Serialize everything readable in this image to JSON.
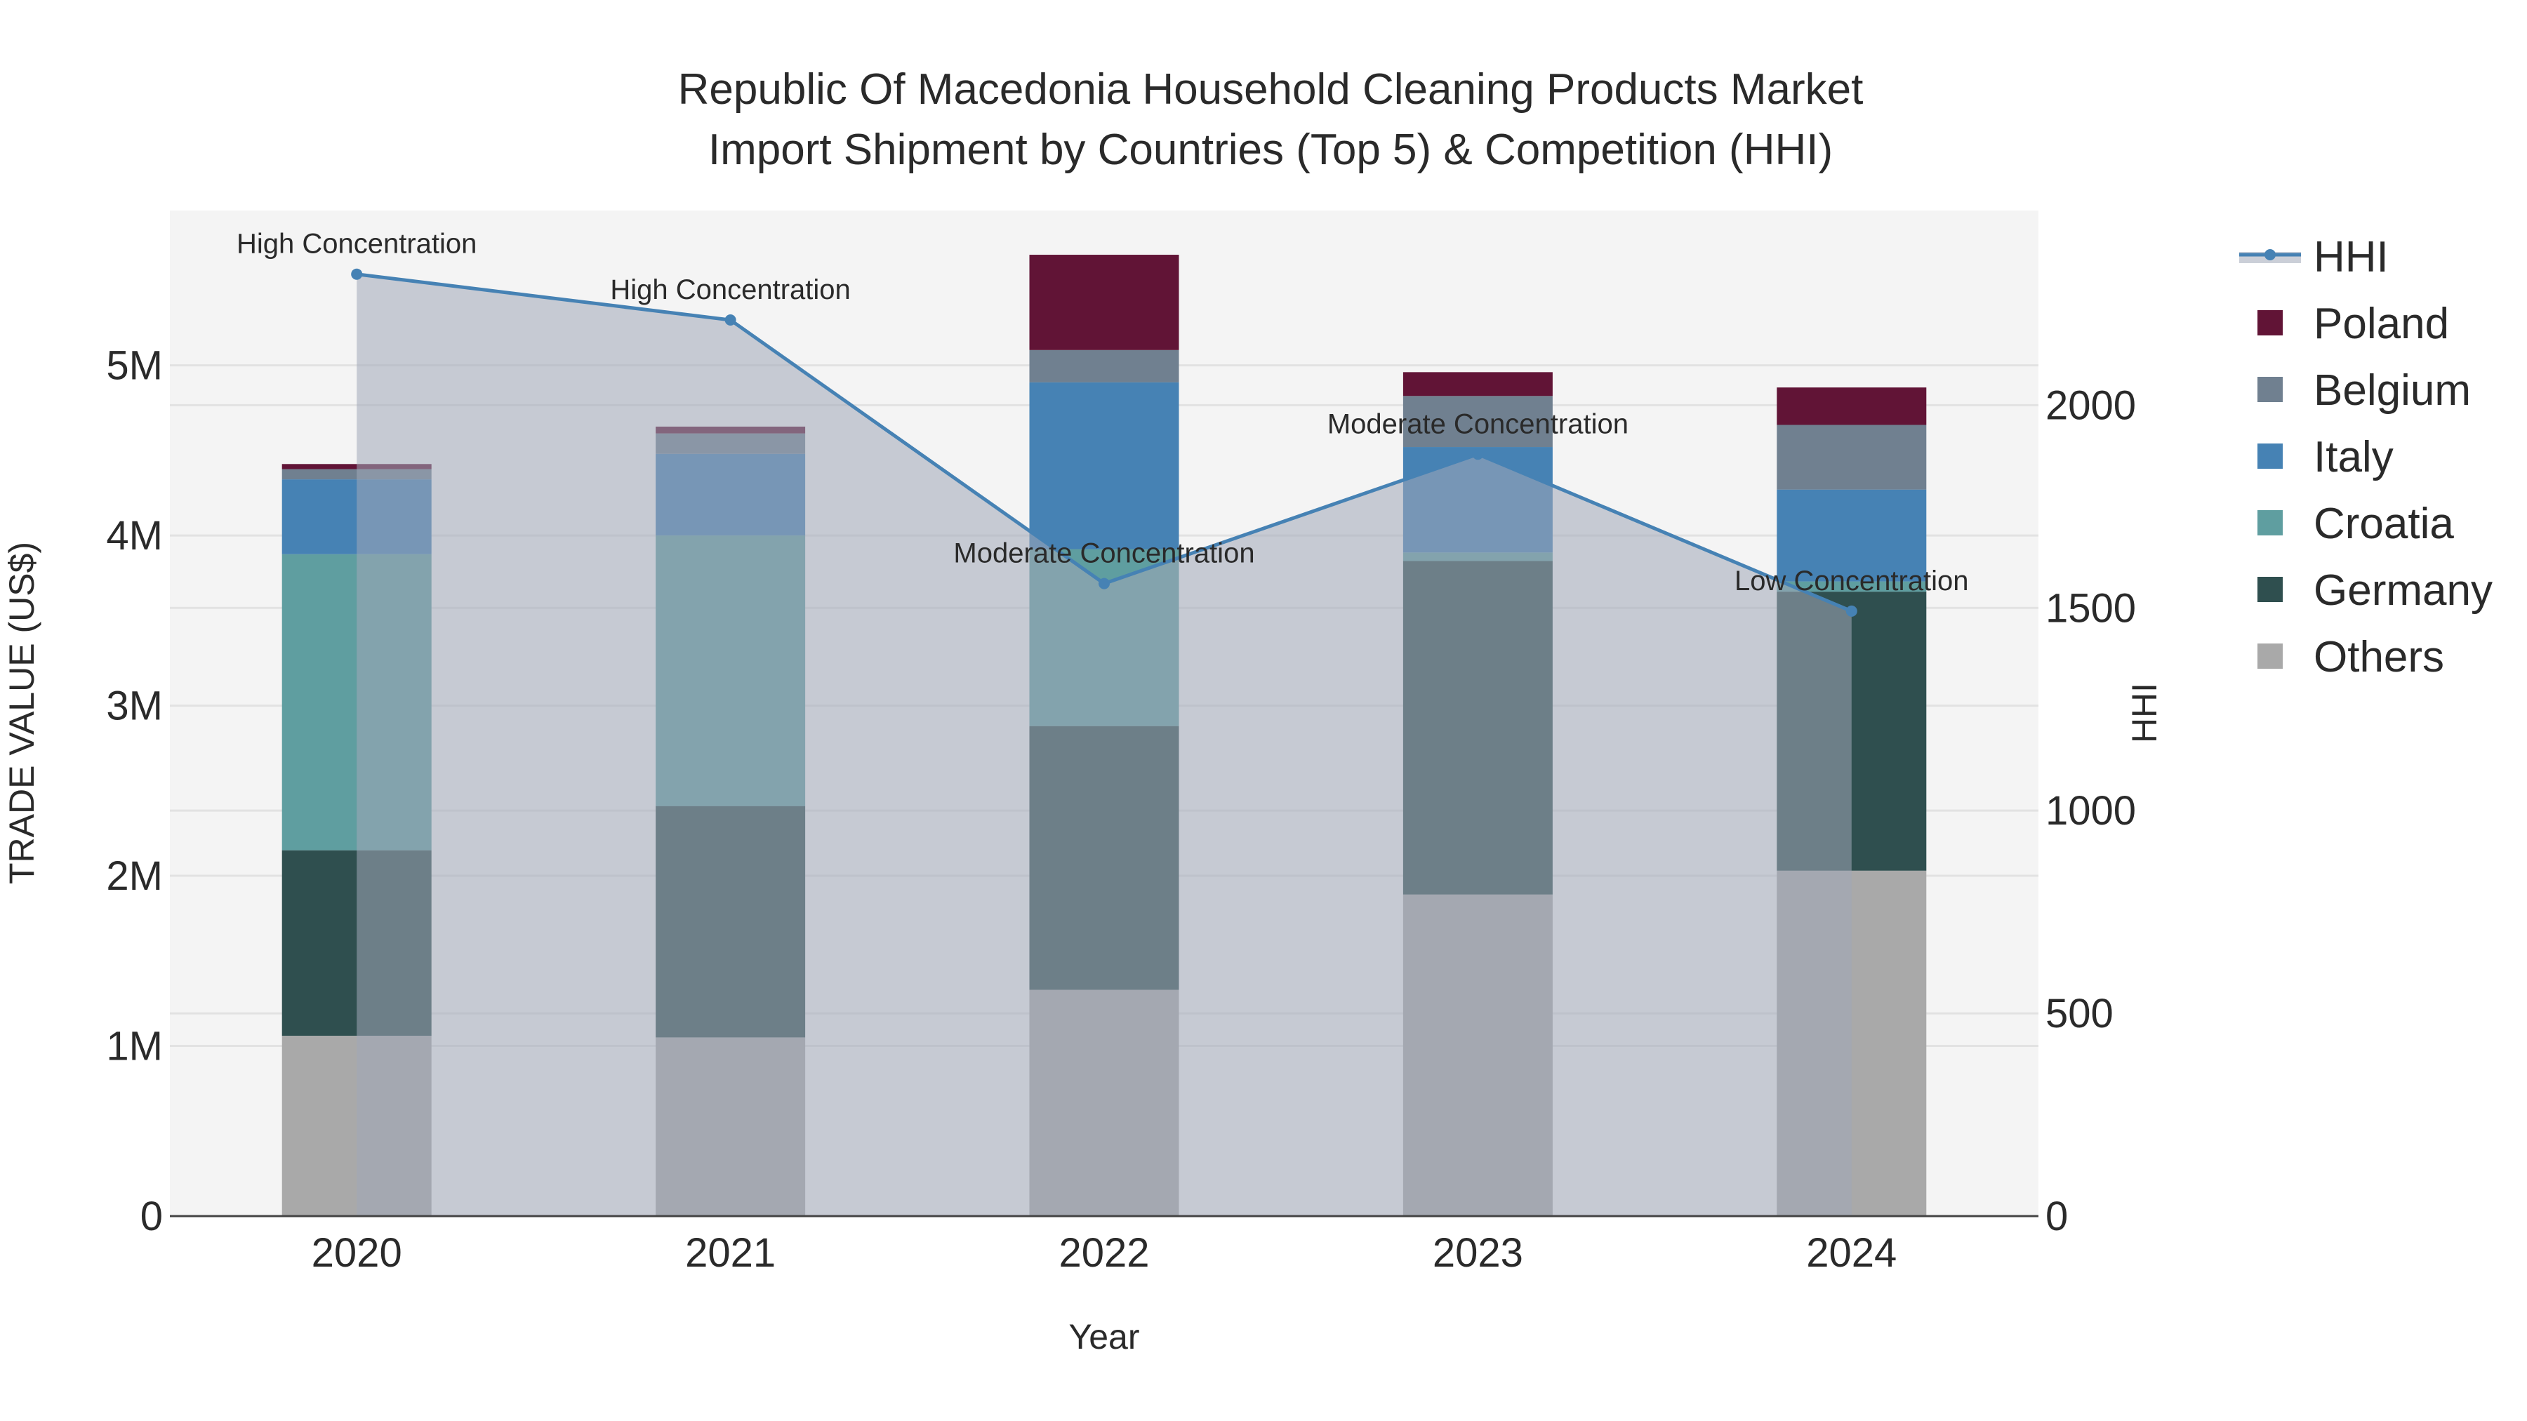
{
  "chart_data": {
    "type": "bar",
    "title_line1": "Republic Of Macedonia Household Cleaning Products Market",
    "title_line2": "Import Shipment by Countries (Top 5) & Competition (HHI)",
    "xlabel": "Year",
    "ylabel": "TRADE VALUE (US$)",
    "y2label": "HHI",
    "categories": [
      "2020",
      "2021",
      "2022",
      "2023",
      "2024"
    ],
    "ylim": [
      0,
      5910000
    ],
    "y2lim": [
      0,
      2480
    ],
    "yticks": [
      {
        "v": 0,
        "label": "0"
      },
      {
        "v": 1000000,
        "label": "1M"
      },
      {
        "v": 2000000,
        "label": "2M"
      },
      {
        "v": 3000000,
        "label": "3M"
      },
      {
        "v": 4000000,
        "label": "4M"
      },
      {
        "v": 5000000,
        "label": "5M"
      }
    ],
    "y2ticks": [
      {
        "v": 0,
        "label": "0"
      },
      {
        "v": 500,
        "label": "500"
      },
      {
        "v": 1000,
        "label": "1000"
      },
      {
        "v": 1500,
        "label": "1500"
      },
      {
        "v": 2000,
        "label": "2000"
      }
    ],
    "grid": true,
    "legend_position": "right",
    "series": [
      {
        "name": "Others",
        "color": "#a9a9a9",
        "values": [
          1060000,
          1050000,
          1330000,
          1890000,
          2030000
        ]
      },
      {
        "name": "Germany",
        "color": "#2f4f4f",
        "values": [
          1090000,
          1360000,
          1550000,
          1960000,
          1640000
        ]
      },
      {
        "name": "Croatia",
        "color": "#5f9ea0",
        "values": [
          1740000,
          1590000,
          1040000,
          50000,
          60000
        ]
      },
      {
        "name": "Italy",
        "color": "#4682b4",
        "values": [
          440000,
          480000,
          980000,
          620000,
          540000
        ]
      },
      {
        "name": "Belgium",
        "color": "#708090",
        "values": [
          60000,
          120000,
          190000,
          300000,
          380000
        ]
      },
      {
        "name": "Poland",
        "color": "#611436",
        "values": [
          30000,
          40000,
          560000,
          140000,
          220000
        ]
      }
    ],
    "hhi": {
      "name": "HHI",
      "color": "#4682b4",
      "values": [
        2323,
        2210,
        1560,
        1879,
        1492
      ],
      "annotations": [
        "High Concentration",
        "High Concentration",
        "Moderate Concentration",
        "Moderate Concentration",
        "Low Concentration"
      ]
    },
    "legend_order": [
      "HHI",
      "Poland",
      "Belgium",
      "Italy",
      "Croatia",
      "Germany",
      "Others"
    ]
  }
}
